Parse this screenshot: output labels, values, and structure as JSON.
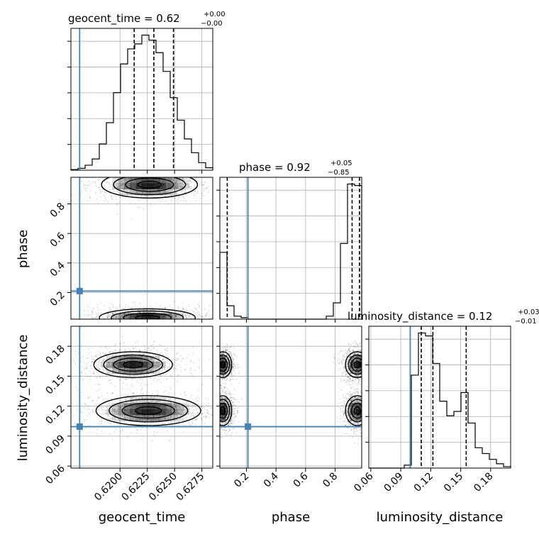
{
  "chart_data": {
    "type": "corner",
    "parameters": [
      {
        "name": "geocent_time",
        "axis_label": "geocent_time",
        "title_text": "geocent_time = 0.62",
        "title_plus": "+0.00",
        "title_minus": "−0.00",
        "range": [
          0.6155,
          0.6285
        ],
        "ticks": [
          0.62,
          0.6225,
          0.625,
          0.6275
        ],
        "tick_labels": [
          "0.6200",
          "0.6225",
          "0.6250",
          "0.6275"
        ],
        "truth": 0.6163,
        "quantiles": [
          0.6213,
          0.6231,
          0.6249
        ],
        "hist_edges": [
          0.6155,
          0.61615,
          0.6168,
          0.61745,
          0.6181,
          0.61875,
          0.6194,
          0.62005,
          0.6207,
          0.62135,
          0.622,
          0.62265,
          0.6233,
          0.62395,
          0.6246,
          0.62525,
          0.6259,
          0.62655,
          0.6272,
          0.62785,
          0.6285
        ],
        "hist_counts": [
          0.5,
          1.5,
          4,
          9,
          21,
          38,
          62,
          85,
          97,
          101,
          108,
          104,
          94,
          79,
          58,
          40,
          25,
          14,
          6,
          2
        ]
      },
      {
        "name": "phase",
        "axis_label": "phase",
        "title_text": "phase = 0.92",
        "title_plus": "+0.05",
        "title_minus": "−0.85",
        "range": [
          0.02,
          0.98
        ],
        "ticks": [
          0.2,
          0.4,
          0.6,
          0.8
        ],
        "tick_labels": [
          "0.2",
          "0.4",
          "0.6",
          "0.8"
        ],
        "truth": 0.21,
        "quantiles": [
          0.07,
          0.915,
          0.965
        ],
        "hist_edges": [
          0.02,
          0.068,
          0.116,
          0.164,
          0.212,
          0.26,
          0.308,
          0.356,
          0.404,
          0.452,
          0.5,
          0.548,
          0.596,
          0.644,
          0.692,
          0.74,
          0.788,
          0.836,
          0.884,
          0.932,
          0.98
        ],
        "hist_counts": [
          45,
          9,
          2,
          1,
          0,
          0,
          0,
          0,
          0,
          0,
          0,
          0,
          0,
          0,
          0,
          2,
          11,
          51,
          91,
          90
        ]
      },
      {
        "name": "luminosity_distance",
        "axis_label": "luminosity_distance",
        "title_text": "luminosity_distance = 0.12",
        "title_plus": "+0.03",
        "title_minus": "−0.01",
        "range": [
          0.058,
          0.2
        ],
        "ticks": [
          0.06,
          0.09,
          0.12,
          0.15,
          0.18
        ],
        "tick_labels": [
          "0.06",
          "0.09",
          "0.12",
          "0.15",
          "0.18"
        ],
        "truth": 0.0995,
        "quantiles": [
          0.1105,
          0.1222,
          0.1555
        ],
        "hist_edges": [
          0.058,
          0.0651,
          0.0722,
          0.0793,
          0.0864,
          0.0935,
          0.1006,
          0.1077,
          0.1148,
          0.1219,
          0.129,
          0.1361,
          0.1432,
          0.1503,
          0.1574,
          0.1645,
          0.1716,
          0.1787,
          0.1858,
          0.1929,
          0.2
        ],
        "hist_counts": [
          0,
          0,
          0,
          0,
          0,
          2,
          64,
          93,
          91,
          72,
          46,
          36,
          39,
          52,
          31,
          14,
          10,
          6,
          3,
          1
        ]
      }
    ],
    "joint": [
      {
        "x": "geocent_time",
        "y": "phase",
        "modes": [
          {
            "center": [
              0.6227,
              0.93
            ],
            "sigma": [
              0.0022,
              0.045
            ],
            "label": "upper"
          },
          {
            "center": [
              0.6225,
              0.03
            ],
            "sigma": [
              0.0022,
              0.03
            ],
            "label": "lower"
          }
        ]
      },
      {
        "x": "geocent_time",
        "y": "luminosity_distance",
        "modes": [
          {
            "center": [
              0.6226,
              0.1155
            ],
            "sigma": [
              0.0024,
              0.0075
            ],
            "label": "lower"
          },
          {
            "center": [
              0.6212,
              0.1615
            ],
            "sigma": [
              0.0018,
              0.0065
            ],
            "label": "upper"
          }
        ]
      },
      {
        "x": "phase",
        "y": "luminosity_distance",
        "modes": [
          {
            "center": [
              0.95,
              0.1155
            ],
            "sigma": [
              0.04,
              0.0075
            ],
            "label": "right-lower"
          },
          {
            "center": [
              0.95,
              0.1615
            ],
            "sigma": [
              0.04,
              0.0065
            ],
            "label": "right-upper"
          },
          {
            "center": [
              0.04,
              0.1155
            ],
            "sigma": [
              0.03,
              0.0075
            ],
            "label": "left-lower"
          },
          {
            "center": [
              0.04,
              0.1615
            ],
            "sigma": [
              0.03,
              0.0065
            ],
            "label": "left-upper"
          }
        ]
      }
    ],
    "colors": {
      "hist": "#000000",
      "quantile": "#000000",
      "truth": "#4682b4",
      "grid": "#b0b0b0",
      "density": "#000000"
    },
    "grid": true
  }
}
